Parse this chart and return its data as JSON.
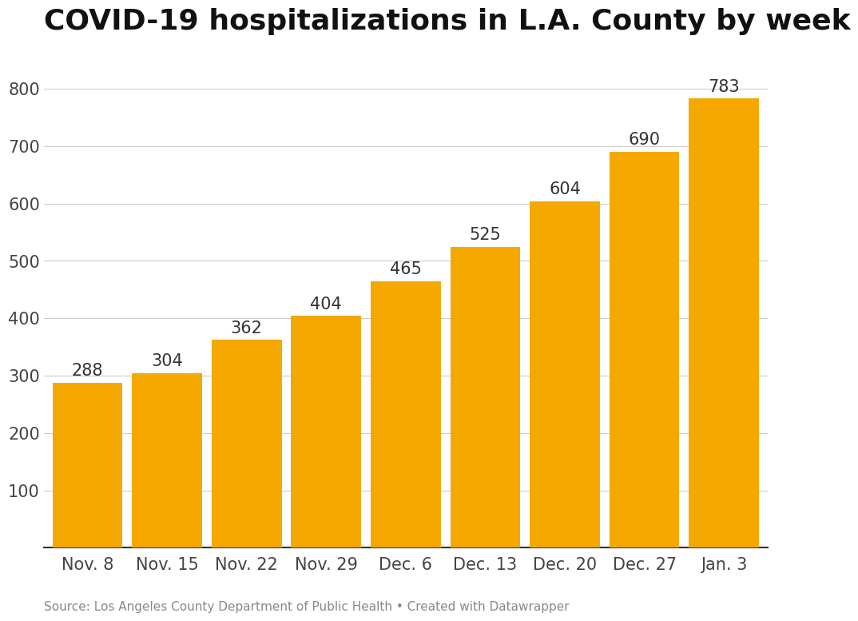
{
  "title": "COVID-19 hospitalizations in L.A. County by week",
  "categories": [
    "Nov. 8",
    "Nov. 15",
    "Nov. 22",
    "Nov. 29",
    "Dec. 6",
    "Dec. 13",
    "Dec. 20",
    "Dec. 27",
    "Jan. 3"
  ],
  "values": [
    288,
    304,
    362,
    404,
    465,
    525,
    604,
    690,
    783
  ],
  "bar_color": "#F5A800",
  "background_color": "#ffffff",
  "ylim": [
    0,
    860
  ],
  "yticks": [
    100,
    200,
    300,
    400,
    500,
    600,
    700,
    800
  ],
  "title_fontsize": 26,
  "tick_fontsize": 15,
  "label_fontsize": 15,
  "source_text": "Source: Los Angeles County Department of Public Health • Created with Datawrapper",
  "grid_color": "#cccccc",
  "bar_gap": 0.12
}
